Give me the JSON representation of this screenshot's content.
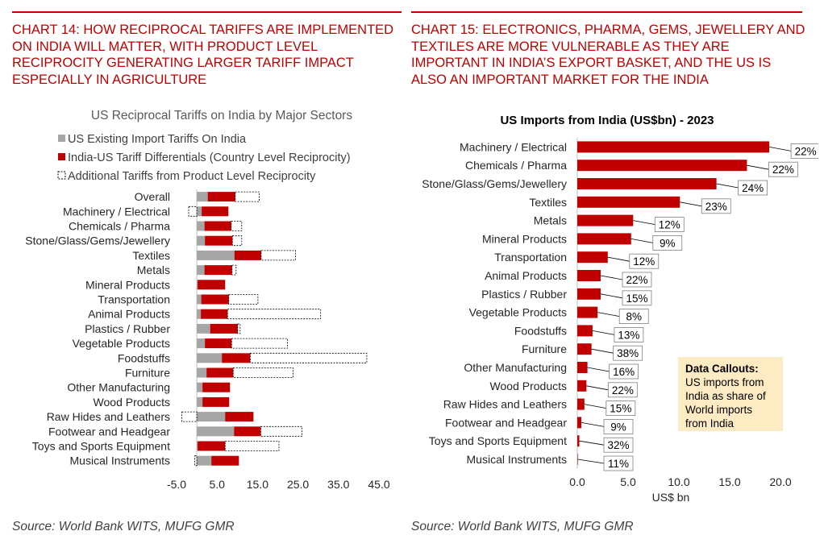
{
  "colors": {
    "accent": "#c00000",
    "grey": "#a6a6a6",
    "callout_bg": "#fdebc4"
  },
  "left": {
    "heading": "CHART 14: HOW RECIPROCAL TARIFFS ARE IMPLEMENTED ON INDIA WILL MATTER, WITH PRODUCT LEVEL RECIPROCITY GENERATING LARGER TARIFF IMPACT ESPECIALLY IN AGRICULTURE",
    "source": "Source: World Bank WITS, MUFG GMR"
  },
  "right": {
    "heading": "CHART 15: ELECTRONICS, PHARMA, GEMS, JEWELLERY AND TEXTILES ARE MORE VULNERABLE AS THEY ARE IMPORTANT IN INDIA’S EXPORT BASKET, AND THE US IS ALSO AN IMPORTANT MARKET FOR THE INDIA",
    "source": "Source: World Bank WITS, MUFG GMR"
  },
  "chart_data": [
    {
      "type": "bar",
      "orientation": "horizontal",
      "stacked": true,
      "title": "US Reciprocal Tariffs on India by Major Sectors",
      "xlabel": "",
      "ylabel": "",
      "categories": [
        "Overall",
        "Machinery / Electrical",
        "Chemicals / Pharma",
        "Stone/Glass/Gems/Jewellery",
        "Textiles",
        "Metals",
        "Mineral Products",
        "Transportation",
        "Animal Products",
        "Plastics / Rubber",
        "Vegetable Products",
        "Foodstuffs",
        "Furniture",
        "Other Manufacturing",
        "Wood Products",
        "Raw Hides and Leathers",
        "Footwear and Headgear",
        "Toys and Sports Equipment",
        "Musical Instruments"
      ],
      "series": [
        {
          "name": "US Existing Import Tariffs On India",
          "values": [
            2.7,
            1.2,
            1.9,
            2.0,
            9.3,
            1.9,
            0.2,
            1.1,
            1.0,
            3.3,
            2.0,
            6.2,
            2.4,
            1.4,
            1.4,
            7.0,
            9.2,
            0.2,
            3.6
          ]
        },
        {
          "name": "India-US Tariff Differentials (Country Level Reciprocity)",
          "values": [
            6.8,
            6.6,
            6.6,
            6.8,
            6.6,
            6.8,
            6.8,
            6.8,
            6.6,
            6.8,
            6.6,
            7.0,
            6.6,
            6.8,
            6.6,
            7.0,
            6.6,
            6.8,
            6.8
          ]
        },
        {
          "name": "Additional Tariffs from Product Level Reciprocity",
          "values": [
            5.9,
            -2.0,
            2.6,
            2.3,
            8.5,
            1.0,
            0.0,
            7.2,
            23.0,
            0.6,
            13.8,
            28.8,
            14.8,
            0.0,
            0.0,
            -3.7,
            10.2,
            13.3,
            -0.5
          ]
        }
      ],
      "xlim": [
        -5,
        45
      ],
      "xticks": [
        "-5.0",
        "5.0",
        "15.0",
        "25.0",
        "35.0",
        "45.0"
      ],
      "legend": "top"
    },
    {
      "type": "bar",
      "orientation": "horizontal",
      "title": "US Imports from India (US$bn) - 2023",
      "xlabel": "US$ bn",
      "ylabel": "",
      "categories": [
        "Machinery / Electrical",
        "Chemicals / Pharma",
        "Stone/Glass/Gems/Jewellery",
        "Textiles",
        "Metals",
        "Mineral Products",
        "Transportation",
        "Animal Products",
        "Plastics / Rubber",
        "Vegetable Products",
        "Foodstuffs",
        "Furniture",
        "Other Manufacturing",
        "Wood Products",
        "Raw Hides and Leathers",
        "Footwear and Headgear",
        "Toys and Sports Equipment",
        "Musical Instruments"
      ],
      "values": [
        18.9,
        16.7,
        13.7,
        10.1,
        5.5,
        5.3,
        3.0,
        2.3,
        2.3,
        2.0,
        1.5,
        1.4,
        1.0,
        0.9,
        0.7,
        0.4,
        0.2,
        0.05
      ],
      "labels": [
        "22%",
        "22%",
        "24%",
        "23%",
        "12%",
        "9%",
        "12%",
        "22%",
        "15%",
        "8%",
        "13%",
        "38%",
        "16%",
        "22%",
        "15%",
        "9%",
        "32%",
        "11%"
      ],
      "xlim": [
        0,
        20
      ],
      "xticks": [
        "0.0",
        "5.0",
        "10.0",
        "15.0",
        "20.0"
      ],
      "callout": {
        "title": "Data Callouts:",
        "lines": [
          "US imports from",
          "India as share of",
          "World imports",
          "from India"
        ]
      }
    }
  ]
}
